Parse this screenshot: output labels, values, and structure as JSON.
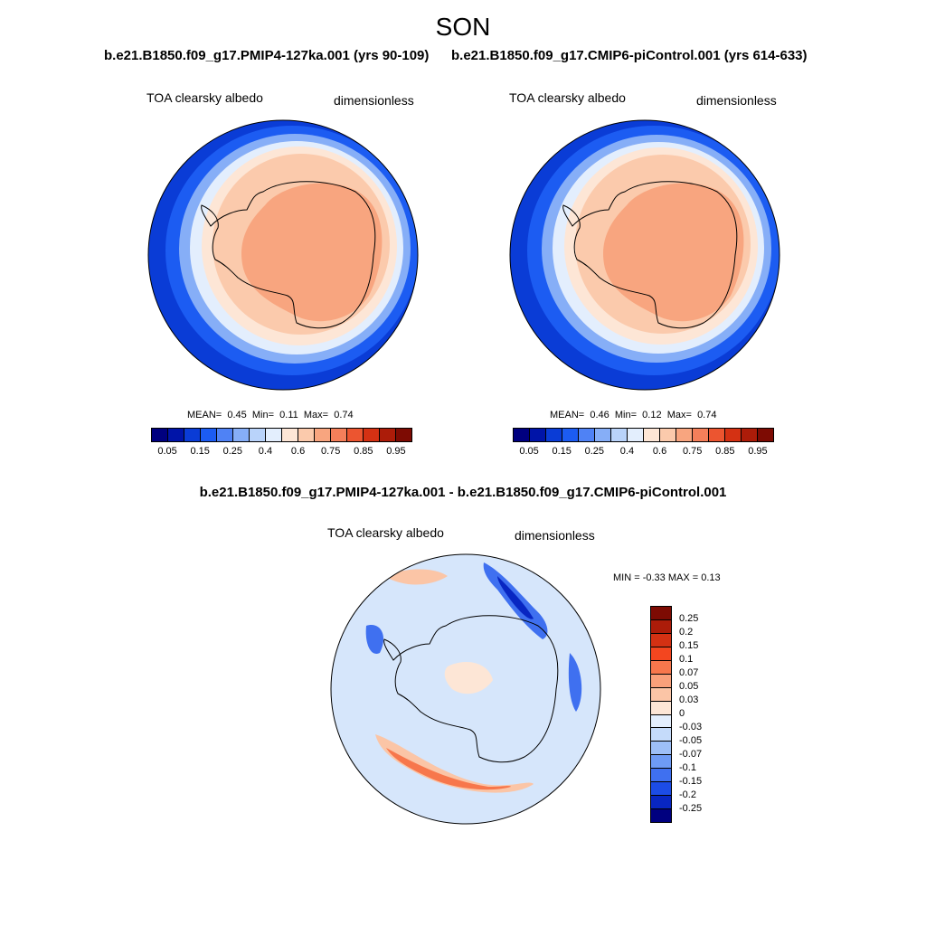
{
  "season_title": "SON",
  "panel_left": {
    "run_title": "b.e21.B1850.f09_g17.PMIP4-127ka.001 (yrs 90-109)",
    "variable": "TOA clearsky albedo",
    "units": "dimensionless",
    "mean_label": "MEAN=",
    "mean": "0.45",
    "min_label": "Min=",
    "min": "0.11",
    "max_label": "Max=",
    "max": "0.74"
  },
  "panel_right": {
    "run_title": "b.e21.B1850.f09_g17.CMIP6-piControl.001 (yrs 614-633)",
    "variable": "TOA clearsky albedo",
    "units": "dimensionless",
    "mean_label": "MEAN=",
    "mean": "0.46",
    "min_label": "Min=",
    "min": "0.12",
    "max_label": "Max=",
    "max": "0.74"
  },
  "panel_diff": {
    "run_title": "b.e21.B1850.f09_g17.PMIP4-127ka.001 - b.e21.B1850.f09_g17.CMIP6-piControl.001",
    "variable": "TOA clearsky albedo",
    "units": "dimensionless",
    "minmax_text": "MIN =  -0.33 MAX =   0.13"
  },
  "colorbar_abs": {
    "colors": [
      "#00007f",
      "#0014a8",
      "#0a3cd6",
      "#1c5cf2",
      "#4f82f5",
      "#86aef7",
      "#b9d3fa",
      "#e3eefd",
      "#fde6d6",
      "#fbcaac",
      "#f8a57f",
      "#f47f5a",
      "#ec5530",
      "#d43113",
      "#ac1c09",
      "#7d0b03"
    ],
    "labels": [
      "0.05",
      "0.15",
      "0.25",
      "0.4",
      "0.6",
      "0.75",
      "0.85",
      "0.95"
    ]
  },
  "colorbar_diff": {
    "colors": [
      "#7d0b03",
      "#ac1c09",
      "#d43113",
      "#f3461f",
      "#f7774c",
      "#f9a07a",
      "#fbc5a6",
      "#fde6d6",
      "#e3eefd",
      "#c5dbfa",
      "#9dbff7",
      "#6e9bf5",
      "#3f70f0",
      "#1c4ce6",
      "#0826c2",
      "#00007f"
    ],
    "labels": [
      "0.25",
      "0.2",
      "0.15",
      "0.1",
      "0.07",
      "0.05",
      "0.03",
      "0",
      "-0.03",
      "-0.05",
      "-0.07",
      "-0.1",
      "-0.15",
      "-0.2",
      "-0.25"
    ]
  }
}
